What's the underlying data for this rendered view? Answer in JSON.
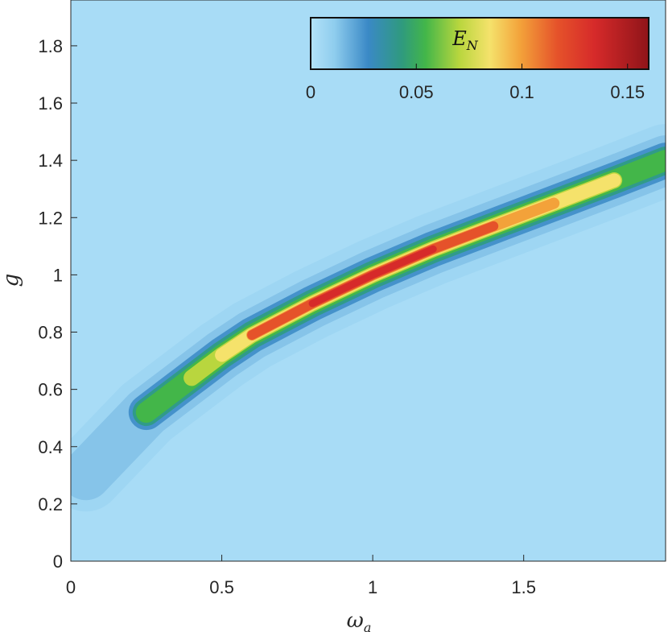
{
  "chart_data": {
    "type": "heatmap",
    "title": "",
    "xlabel": "ω",
    "xlabel_sub": "a",
    "ylabel": "g",
    "xlim": [
      0,
      1.97
    ],
    "ylim": [
      0,
      1.96
    ],
    "xticks": [
      0,
      0.5,
      1,
      1.5
    ],
    "xtick_labels": [
      "0",
      "0.5",
      "1",
      "1.5"
    ],
    "yticks": [
      0,
      0.2,
      0.4,
      0.6,
      0.8,
      1,
      1.2,
      1.4,
      1.6,
      1.8
    ],
    "ytick_labels": [
      "0",
      "0.2",
      "0.4",
      "0.6",
      "0.8",
      "1",
      "1.2",
      "1.4",
      "1.6",
      "1.8"
    ],
    "colorbar": {
      "label": "E",
      "label_sub": "N",
      "location": "top-right",
      "range": [
        0,
        0.16
      ],
      "ticks": [
        0,
        0.05,
        0.1,
        0.15
      ],
      "tick_labels": [
        "0",
        "0.05",
        "0.1",
        "0.15"
      ],
      "colors": [
        "#a8dcf6",
        "#3a89c6",
        "#43b649",
        "#f5e26b",
        "#f08a32",
        "#d62a2a",
        "#8f1419"
      ]
    },
    "ridge": {
      "description_points_x": [
        0.05,
        0.25,
        0.4,
        0.5,
        0.6,
        0.8,
        1.0,
        1.2,
        1.4,
        1.6,
        1.8,
        1.97
      ],
      "description_points_g": [
        0.3,
        0.52,
        0.64,
        0.72,
        0.79,
        0.9,
        1.0,
        1.09,
        1.17,
        1.25,
        1.33,
        1.4
      ],
      "peak_values": [
        0.02,
        0.04,
        0.06,
        0.08,
        0.1,
        0.14,
        0.16,
        0.15,
        0.12,
        0.09,
        0.06,
        0.05
      ]
    },
    "peak": {
      "x": 1.0,
      "g": 1.0,
      "value": 0.16
    },
    "grid": false
  }
}
